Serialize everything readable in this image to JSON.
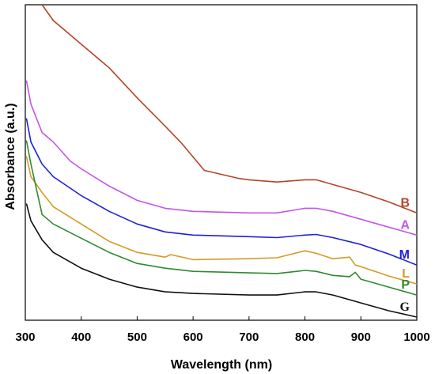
{
  "chart_data": {
    "type": "line",
    "title": "",
    "xlabel": "Wavelength (nm)",
    "ylabel": "Absorbance (a.u.)",
    "xlim": [
      300,
      1000
    ],
    "ylim": [
      0,
      10
    ],
    "xticks": [
      300,
      400,
      500,
      600,
      700,
      800,
      900,
      1000
    ],
    "yticks_shown": false,
    "grid": false,
    "legend": "inline labels at right end of each curve",
    "series": [
      {
        "name": "B",
        "color": "#b5432b",
        "x": [
          330,
          350,
          400,
          450,
          500,
          550,
          580,
          620,
          680,
          700,
          750,
          800,
          820,
          850,
          900,
          950,
          1000
        ],
        "y": [
          10.0,
          9.5,
          8.75,
          8.0,
          7.05,
          6.15,
          5.6,
          4.75,
          4.5,
          4.45,
          4.38,
          4.45,
          4.45,
          4.3,
          4.05,
          3.75,
          3.4
        ]
      },
      {
        "name": "A",
        "color": "#c455e6",
        "x": [
          302,
          310,
          330,
          350,
          380,
          400,
          450,
          500,
          550,
          600,
          700,
          750,
          800,
          820,
          850,
          900,
          950,
          1000
        ],
        "y": [
          7.6,
          6.85,
          5.95,
          5.65,
          5.05,
          4.8,
          4.25,
          3.8,
          3.55,
          3.45,
          3.4,
          3.4,
          3.55,
          3.55,
          3.45,
          3.2,
          2.95,
          2.7
        ]
      },
      {
        "name": "M",
        "color": "#2020d8",
        "x": [
          302,
          310,
          330,
          350,
          400,
          450,
          500,
          550,
          600,
          700,
          750,
          800,
          820,
          850,
          900,
          950,
          1000
        ],
        "y": [
          6.4,
          5.65,
          4.95,
          4.55,
          3.95,
          3.45,
          3.05,
          2.8,
          2.7,
          2.65,
          2.62,
          2.7,
          2.72,
          2.62,
          2.4,
          2.1,
          1.75
        ]
      },
      {
        "name": "L",
        "color": "#d39b24",
        "x": [
          302,
          310,
          330,
          350,
          400,
          450,
          500,
          550,
          560,
          600,
          700,
          750,
          800,
          820,
          850,
          880,
          890,
          900,
          950,
          1000
        ],
        "y": [
          5.2,
          4.55,
          4.05,
          3.6,
          3.05,
          2.5,
          2.15,
          2.0,
          2.08,
          1.92,
          1.95,
          1.98,
          2.2,
          2.12,
          1.95,
          2.0,
          1.75,
          1.7,
          1.4,
          1.15
        ]
      },
      {
        "name": "P",
        "color": "#2e8a2e",
        "x": [
          302,
          310,
          330,
          350,
          400,
          450,
          500,
          550,
          600,
          700,
          750,
          800,
          820,
          850,
          880,
          890,
          900,
          950,
          1000
        ],
        "y": [
          5.7,
          4.95,
          3.35,
          3.05,
          2.6,
          2.15,
          1.8,
          1.65,
          1.55,
          1.5,
          1.48,
          1.58,
          1.55,
          1.42,
          1.38,
          1.52,
          1.3,
          1.05,
          0.8
        ]
      },
      {
        "name": "G",
        "color": "#111111",
        "x": [
          302,
          310,
          330,
          350,
          400,
          450,
          500,
          550,
          600,
          700,
          750,
          800,
          820,
          850,
          900,
          950,
          1000
        ],
        "y": [
          3.7,
          3.15,
          2.55,
          2.15,
          1.65,
          1.3,
          1.05,
          0.9,
          0.85,
          0.8,
          0.8,
          0.9,
          0.9,
          0.8,
          0.55,
          0.3,
          0.1
        ]
      }
    ]
  }
}
